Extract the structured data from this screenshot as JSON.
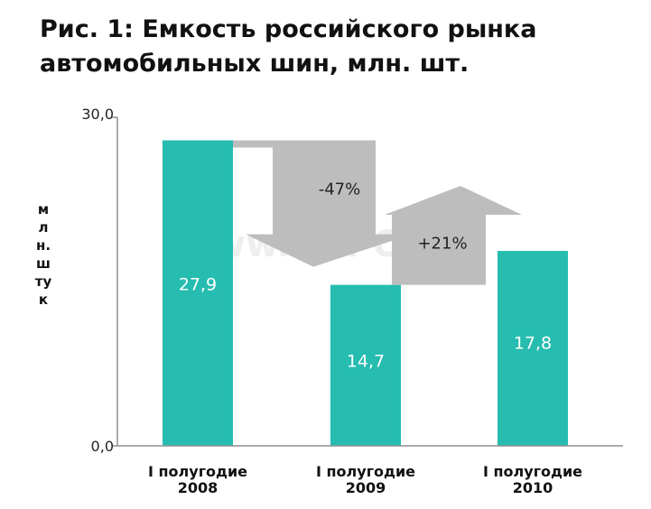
{
  "title_lines": [
    "Рис. 1: Емкость российского рынка",
    "автомобильных шин, млн. шт."
  ],
  "watermark": "www.TOPOP.ru",
  "colors": {
    "bar": "#26bcb0",
    "arrow": "#bdbdbd",
    "axis": "#8f8f8f"
  },
  "chart_data": {
    "type": "bar",
    "title": "Рис. 1: Емкость российского рынка автомобильных шин, млн. шт.",
    "ylabel": "млн.штук",
    "xlabel": "",
    "ylim": [
      0,
      30
    ],
    "y_tick_labels": [
      "30,0",
      "0,0"
    ],
    "categories": [
      [
        "I полугодие",
        "2008"
      ],
      [
        "I полугодие",
        "2009"
      ],
      [
        "I полугодие",
        "2010"
      ]
    ],
    "values": [
      27.9,
      14.7,
      17.8
    ],
    "value_labels": [
      "27,9",
      "14,7",
      "17,8"
    ],
    "grid": false,
    "annotations": [
      {
        "text": "-47%",
        "direction": "down",
        "from_category": 0,
        "to_category": 1
      },
      {
        "text": "+21%",
        "direction": "up",
        "from_category": 1,
        "to_category": 2
      }
    ]
  }
}
